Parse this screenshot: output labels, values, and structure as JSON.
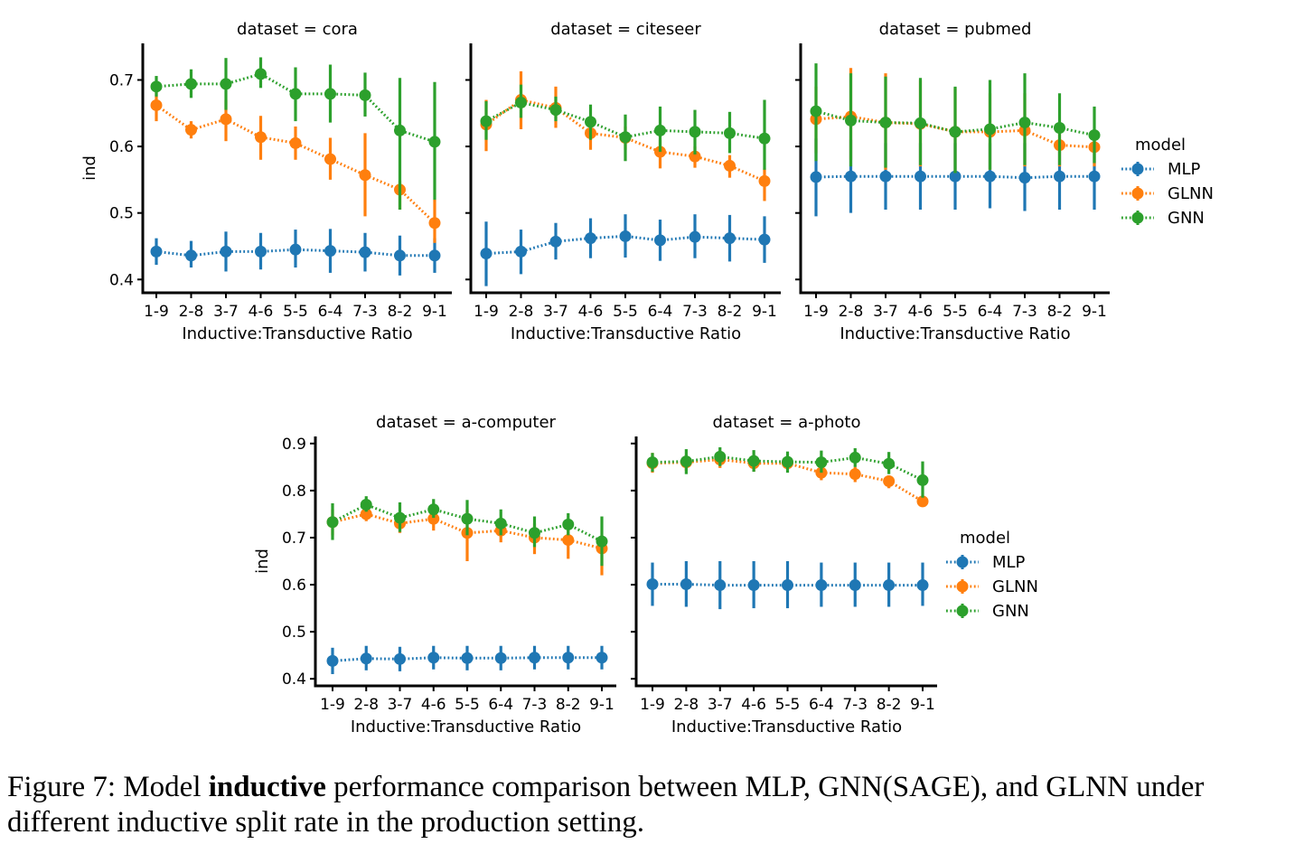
{
  "figure": {
    "caption_prefix": "Figure 7: Model ",
    "caption_bold": "inductive",
    "caption_suffix": " performance comparison between MLP, GNN(SAGE), and GLNN under different inductive split rate in the production setting."
  },
  "colors": {
    "MLP": "#1f77b4",
    "GLNN": "#ff7f0e",
    "GNN": "#2ca02c"
  },
  "legend": {
    "title": "model",
    "entries": [
      "MLP",
      "GLNN",
      "GNN"
    ]
  },
  "chart_data": [
    {
      "type": "line",
      "title": "dataset = cora",
      "xlabel": "Inductive:Transductive Ratio",
      "ylabel": "ind",
      "categories": [
        "1-9",
        "2-8",
        "3-7",
        "4-6",
        "5-5",
        "6-4",
        "7-3",
        "8-2",
        "9-1"
      ],
      "ylim": [
        0.38,
        0.755
      ],
      "yticks": [
        0.4,
        0.5,
        0.6,
        0.7
      ],
      "series": [
        {
          "name": "MLP",
          "values": [
            0.442,
            0.436,
            0.442,
            0.442,
            0.445,
            0.443,
            0.441,
            0.436,
            0.436
          ],
          "err_low": [
            0.422,
            0.418,
            0.412,
            0.415,
            0.418,
            0.41,
            0.412,
            0.406,
            0.41
          ],
          "err_high": [
            0.462,
            0.458,
            0.472,
            0.47,
            0.475,
            0.476,
            0.47,
            0.466,
            0.462
          ]
        },
        {
          "name": "GLNN",
          "values": [
            0.662,
            0.625,
            0.641,
            0.614,
            0.605,
            0.581,
            0.557,
            0.535,
            0.485
          ],
          "err_low": [
            0.638,
            0.612,
            0.608,
            0.58,
            0.58,
            0.55,
            0.495,
            0.505,
            0.455
          ],
          "err_high": [
            0.684,
            0.638,
            0.67,
            0.646,
            0.63,
            0.613,
            0.62,
            0.548,
            0.52
          ]
        },
        {
          "name": "GNN",
          "values": [
            0.69,
            0.694,
            0.694,
            0.709,
            0.679,
            0.679,
            0.677,
            0.624,
            0.607
          ],
          "err_low": [
            0.675,
            0.673,
            0.655,
            0.688,
            0.638,
            0.636,
            0.645,
            0.505,
            0.52
          ],
          "err_high": [
            0.706,
            0.716,
            0.733,
            0.734,
            0.719,
            0.723,
            0.711,
            0.703,
            0.697
          ]
        }
      ]
    },
    {
      "type": "line",
      "title": "dataset = citeseer",
      "xlabel": "Inductive:Transductive Ratio",
      "ylabel": "",
      "categories": [
        "1-9",
        "2-8",
        "3-7",
        "4-6",
        "5-5",
        "6-4",
        "7-3",
        "8-2",
        "9-1"
      ],
      "ylim": [
        0.38,
        0.755
      ],
      "yticks": [
        0.4,
        0.5,
        0.6,
        0.7
      ],
      "series": [
        {
          "name": "MLP",
          "values": [
            0.439,
            0.442,
            0.457,
            0.462,
            0.465,
            0.459,
            0.464,
            0.462,
            0.46
          ],
          "err_low": [
            0.39,
            0.408,
            0.43,
            0.432,
            0.433,
            0.428,
            0.432,
            0.427,
            0.425
          ],
          "err_high": [
            0.487,
            0.475,
            0.485,
            0.492,
            0.498,
            0.49,
            0.498,
            0.497,
            0.495
          ]
        },
        {
          "name": "GLNN",
          "values": [
            0.633,
            0.67,
            0.658,
            0.62,
            0.613,
            0.592,
            0.585,
            0.571,
            0.548
          ],
          "err_low": [
            0.593,
            0.626,
            0.628,
            0.595,
            0.595,
            0.567,
            0.568,
            0.553,
            0.518
          ],
          "err_high": [
            0.67,
            0.713,
            0.69,
            0.637,
            0.63,
            0.61,
            0.6,
            0.587,
            0.567
          ]
        },
        {
          "name": "GNN",
          "values": [
            0.638,
            0.666,
            0.655,
            0.637,
            0.614,
            0.624,
            0.622,
            0.62,
            0.612
          ],
          "err_low": [
            0.61,
            0.643,
            0.638,
            0.61,
            0.578,
            0.592,
            0.588,
            0.59,
            0.565
          ],
          "err_high": [
            0.668,
            0.693,
            0.675,
            0.663,
            0.648,
            0.66,
            0.655,
            0.652,
            0.67
          ]
        }
      ]
    },
    {
      "type": "line",
      "title": "dataset = pubmed",
      "xlabel": "Inductive:Transductive Ratio",
      "ylabel": "",
      "categories": [
        "1-9",
        "2-8",
        "3-7",
        "4-6",
        "5-5",
        "6-4",
        "7-3",
        "8-2",
        "9-1"
      ],
      "ylim": [
        0.38,
        0.755
      ],
      "yticks": [
        0.4,
        0.5,
        0.6,
        0.7
      ],
      "series": [
        {
          "name": "MLP",
          "values": [
            0.554,
            0.555,
            0.555,
            0.555,
            0.555,
            0.555,
            0.553,
            0.555,
            0.555
          ],
          "err_low": [
            0.495,
            0.5,
            0.505,
            0.505,
            0.505,
            0.507,
            0.503,
            0.505,
            0.505
          ],
          "err_high": [
            0.612,
            0.61,
            0.605,
            0.605,
            0.605,
            0.605,
            0.605,
            0.605,
            0.605
          ]
        },
        {
          "name": "GLNN",
          "values": [
            0.641,
            0.645,
            0.636,
            0.634,
            0.622,
            0.622,
            0.624,
            0.602,
            0.599
          ],
          "err_low": [
            0.59,
            0.58,
            0.565,
            0.57,
            0.56,
            0.565,
            0.57,
            0.57,
            0.57
          ],
          "err_high": [
            0.69,
            0.718,
            0.71,
            0.7,
            0.688,
            0.68,
            0.68,
            0.635,
            0.625
          ]
        },
        {
          "name": "GNN",
          "values": [
            0.653,
            0.639,
            0.636,
            0.635,
            0.622,
            0.626,
            0.636,
            0.628,
            0.617
          ],
          "err_low": [
            0.578,
            0.57,
            0.568,
            0.572,
            0.56,
            0.565,
            0.572,
            0.572,
            0.575
          ],
          "err_high": [
            0.725,
            0.71,
            0.705,
            0.703,
            0.69,
            0.7,
            0.71,
            0.68,
            0.66
          ]
        }
      ]
    },
    {
      "type": "line",
      "title": "dataset = a-computer",
      "xlabel": "Inductive:Transductive Ratio",
      "ylabel": "ind",
      "categories": [
        "1-9",
        "2-8",
        "3-7",
        "4-6",
        "5-5",
        "6-4",
        "7-3",
        "8-2",
        "9-1"
      ],
      "ylim": [
        0.385,
        0.915
      ],
      "yticks": [
        0.4,
        0.5,
        0.6,
        0.7,
        0.8,
        0.9
      ],
      "series": [
        {
          "name": "MLP",
          "values": [
            0.438,
            0.443,
            0.442,
            0.445,
            0.444,
            0.444,
            0.445,
            0.445,
            0.445
          ],
          "err_low": [
            0.41,
            0.418,
            0.416,
            0.42,
            0.418,
            0.418,
            0.42,
            0.42,
            0.42
          ],
          "err_high": [
            0.466,
            0.47,
            0.468,
            0.47,
            0.47,
            0.47,
            0.47,
            0.47,
            0.47
          ]
        },
        {
          "name": "GLNN",
          "values": [
            0.733,
            0.75,
            0.73,
            0.74,
            0.71,
            0.715,
            0.7,
            0.695,
            0.677
          ],
          "err_low": [
            0.705,
            0.735,
            0.71,
            0.715,
            0.65,
            0.69,
            0.665,
            0.655,
            0.62
          ],
          "err_high": [
            0.76,
            0.765,
            0.748,
            0.765,
            0.76,
            0.735,
            0.73,
            0.735,
            0.705
          ]
        },
        {
          "name": "GNN",
          "values": [
            0.733,
            0.77,
            0.742,
            0.76,
            0.74,
            0.73,
            0.71,
            0.728,
            0.692
          ],
          "err_low": [
            0.695,
            0.755,
            0.712,
            0.742,
            0.705,
            0.705,
            0.68,
            0.705,
            0.64
          ],
          "err_high": [
            0.773,
            0.788,
            0.775,
            0.782,
            0.78,
            0.76,
            0.745,
            0.752,
            0.745
          ]
        }
      ]
    },
    {
      "type": "line",
      "title": "dataset = a-photo",
      "xlabel": "Inductive:Transductive Ratio",
      "ylabel": "",
      "categories": [
        "1-9",
        "2-8",
        "3-7",
        "4-6",
        "5-5",
        "6-4",
        "7-3",
        "8-2",
        "9-1"
      ],
      "ylim": [
        0.385,
        0.915
      ],
      "yticks": [
        0.4,
        0.5,
        0.6,
        0.7,
        0.8,
        0.9
      ],
      "series": [
        {
          "name": "MLP",
          "values": [
            0.601,
            0.601,
            0.599,
            0.599,
            0.599,
            0.599,
            0.599,
            0.599,
            0.599
          ],
          "err_low": [
            0.555,
            0.553,
            0.548,
            0.55,
            0.55,
            0.553,
            0.553,
            0.553,
            0.555
          ],
          "err_high": [
            0.647,
            0.65,
            0.65,
            0.65,
            0.65,
            0.647,
            0.647,
            0.647,
            0.647
          ]
        },
        {
          "name": "GLNN",
          "values": [
            0.858,
            0.86,
            0.866,
            0.858,
            0.858,
            0.838,
            0.835,
            0.82,
            0.777
          ],
          "err_low": [
            0.838,
            0.842,
            0.848,
            0.84,
            0.845,
            0.822,
            0.818,
            0.805,
            0.768
          ],
          "err_high": [
            0.88,
            0.876,
            0.882,
            0.876,
            0.872,
            0.852,
            0.85,
            0.832,
            0.786
          ]
        },
        {
          "name": "GNN",
          "values": [
            0.86,
            0.862,
            0.872,
            0.863,
            0.861,
            0.86,
            0.87,
            0.857,
            0.822
          ],
          "err_low": [
            0.84,
            0.835,
            0.852,
            0.84,
            0.838,
            0.838,
            0.85,
            0.835,
            0.785
          ],
          "err_high": [
            0.88,
            0.888,
            0.892,
            0.886,
            0.883,
            0.885,
            0.89,
            0.882,
            0.862
          ]
        }
      ]
    }
  ]
}
